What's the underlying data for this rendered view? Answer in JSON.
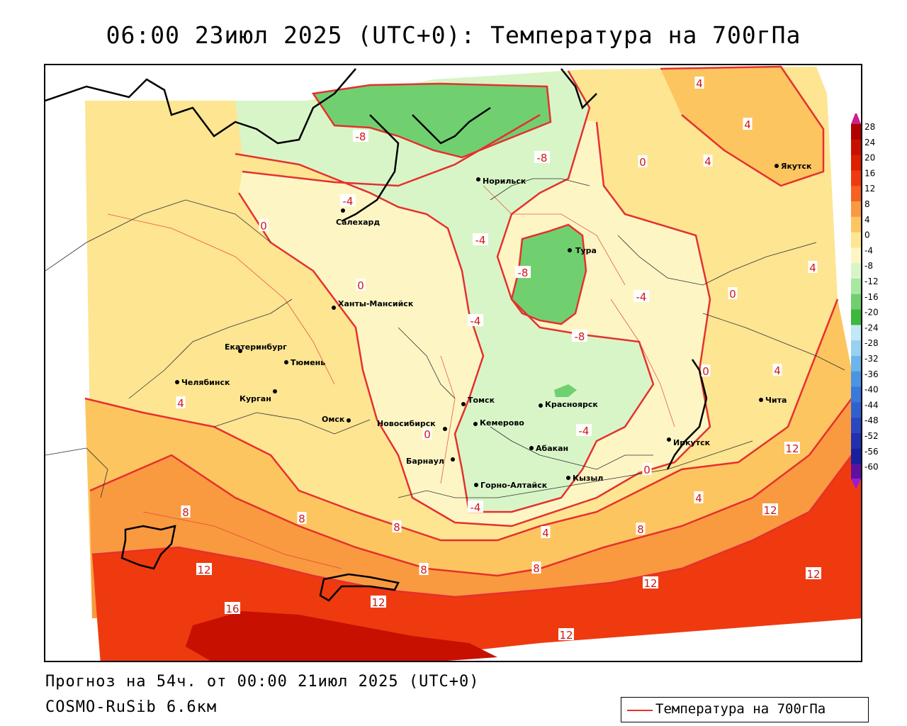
{
  "title": "06:00 23июл 2025 (UTC+0): Температура на 700гПа",
  "forecast_line": "Прогноз на 54ч. от 00:00 21июл 2025 (UTC+0)",
  "model_line": "COSMO-RuSib 6.6км",
  "legend": {
    "label": "Температура на 700гПа",
    "line_color": "#e53030"
  },
  "colorbar": {
    "ticks": [
      "28",
      "24",
      "20",
      "16",
      "12",
      "8",
      "4",
      "0",
      "-4",
      "-8",
      "-12",
      "-16",
      "-20",
      "-24",
      "-28",
      "-32",
      "-36",
      "-40",
      "-44",
      "-48",
      "-52",
      "-56",
      "-60"
    ],
    "colors": [
      "#b00000",
      "#c81000",
      "#dc2000",
      "#ef3a10",
      "#f66020",
      "#f99a40",
      "#fcc560",
      "#fde592",
      "#fdf6c4",
      "#d8f5c8",
      "#a8e8a0",
      "#70d070",
      "#3cb83c",
      "#c0e8f5",
      "#98d0f0",
      "#6cb4ec",
      "#4a94e4",
      "#3a78dc",
      "#3060d0",
      "#2848c0",
      "#2030b0",
      "#1820a0",
      "#6010a0"
    ]
  },
  "cities": [
    {
      "name": "Салехард"
    },
    {
      "name": "Норильск"
    },
    {
      "name": "Якутск"
    },
    {
      "name": "Тура"
    },
    {
      "name": "Ханты-Мансийск"
    },
    {
      "name": "Екатеринбург"
    },
    {
      "name": "Тюмень"
    },
    {
      "name": "Челябинск"
    },
    {
      "name": "Курган"
    },
    {
      "name": "Омск"
    },
    {
      "name": "Новосибирск"
    },
    {
      "name": "Томск"
    },
    {
      "name": "Кемерово"
    },
    {
      "name": "Красноярск"
    },
    {
      "name": "Барнаул"
    },
    {
      "name": "Абакан"
    },
    {
      "name": "Горно-Алтайск"
    },
    {
      "name": "Кызыл"
    },
    {
      "name": "Иркутск"
    },
    {
      "name": "Чита"
    }
  ],
  "isotherm_labels": [
    "-8",
    "-4",
    "-4",
    "-4",
    "-4",
    "-4",
    "-8",
    "-8",
    "-8",
    "-4",
    "0",
    "0",
    "0",
    "0",
    "0",
    "0",
    "0",
    "4",
    "4",
    "4",
    "4",
    "4",
    "4",
    "4",
    "8",
    "8",
    "8",
    "8",
    "8",
    "8",
    "12",
    "12",
    "12",
    "12",
    "12",
    "12",
    "12",
    "16",
    "4"
  ],
  "colors": {
    "isotherm": "#e53030",
    "coast": "#000000",
    "border": "#303030"
  }
}
